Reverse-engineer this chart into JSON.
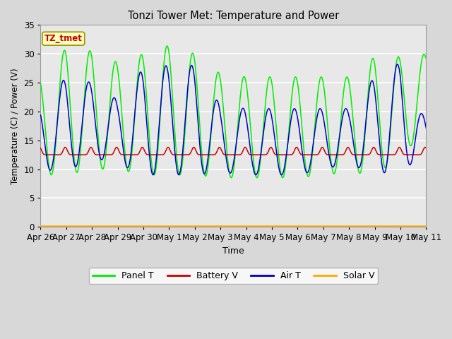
{
  "title": "Tonzi Tower Met: Temperature and Power",
  "xlabel": "Time",
  "ylabel": "Temperature (C) / Power (V)",
  "ylim": [
    0,
    35
  ],
  "annotation_text": "TZ_tmet",
  "bg_color": "#d8d8d8",
  "plot_bg_color": "#e8e8e8",
  "grid_color": "#ffffff",
  "line_colors": {
    "panel_t": "#00ee00",
    "battery_v": "#cc0000",
    "air_t": "#0000cc",
    "solar_v": "#ffaa00"
  },
  "x_tick_labels": [
    "Apr 26",
    "Apr 27",
    "Apr 28",
    "Apr 29",
    "Apr 30",
    "May 1",
    "May 2",
    "May 3",
    "May 4",
    "May 5",
    "May 6",
    "May 7",
    "May 8",
    "May 9",
    "May 10",
    "May 11"
  ],
  "yticks": [
    0,
    5,
    10,
    15,
    20,
    25,
    30,
    35
  ]
}
